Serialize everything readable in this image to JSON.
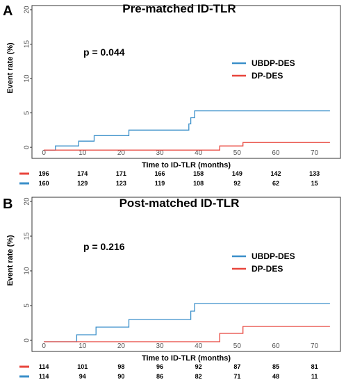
{
  "colors": {
    "ubdp": "#3a8fc9",
    "dp": "#e8453c",
    "axis": "#333333",
    "text": "#000000"
  },
  "chart_data": [
    {
      "panel_label": "A",
      "type": "line",
      "title": "Pre-matched ID-TLR",
      "p_value": "p = 0.044",
      "xlabel": "Time to ID-TLR (months)",
      "ylabel": "Event rate (%)",
      "xlim": [
        -2,
        76
      ],
      "ylim": [
        -1,
        20
      ],
      "x_ticks": [
        0,
        10,
        20,
        30,
        40,
        50,
        60,
        70
      ],
      "y_ticks": [
        0,
        5,
        10,
        15,
        20
      ],
      "legend_position": "right",
      "series": [
        {
          "name": "UBDP-DES",
          "color": "#3a8fc9",
          "steps": [
            [
              0,
              -0.4
            ],
            [
              3,
              -0.4
            ],
            [
              3,
              0.2
            ],
            [
              9,
              0.2
            ],
            [
              9,
              0.9
            ],
            [
              13,
              0.9
            ],
            [
              13,
              1.7
            ],
            [
              22,
              1.7
            ],
            [
              22,
              2.5
            ],
            [
              37.5,
              2.5
            ],
            [
              37.5,
              3.4
            ],
            [
              38,
              3.4
            ],
            [
              38,
              4.3
            ],
            [
              39,
              4.3
            ],
            [
              39,
              5.3
            ],
            [
              74,
              5.3
            ]
          ]
        },
        {
          "name": "DP-DES",
          "color": "#e8453c",
          "steps": [
            [
              0,
              -0.4
            ],
            [
              45.5,
              -0.4
            ],
            [
              45.5,
              0.2
            ],
            [
              51.5,
              0.2
            ],
            [
              51.5,
              0.7
            ],
            [
              74,
              0.7
            ]
          ]
        }
      ],
      "at_risk": [
        {
          "color": "#e8453c",
          "values": [
            "196",
            "174",
            "171",
            "166",
            "158",
            "149",
            "142",
            "133"
          ]
        },
        {
          "color": "#3a8fc9",
          "values": [
            "160",
            "129",
            "123",
            "119",
            "108",
            "92",
            "62",
            "15"
          ]
        }
      ]
    },
    {
      "panel_label": "B",
      "type": "line",
      "title": "Post-matched ID-TLR",
      "p_value": "p = 0.216",
      "xlabel": "Time to ID-TLR (months)",
      "ylabel": "Event rate (%)",
      "xlim": [
        -2,
        76
      ],
      "ylim": [
        -1,
        20
      ],
      "x_ticks": [
        0,
        10,
        20,
        30,
        40,
        50,
        60,
        70
      ],
      "y_ticks": [
        0,
        5,
        10,
        15,
        20
      ],
      "legend_position": "right",
      "series": [
        {
          "name": "UBDP-DES",
          "color": "#3a8fc9",
          "steps": [
            [
              0,
              -0.2
            ],
            [
              8.5,
              -0.2
            ],
            [
              8.5,
              0.8
            ],
            [
              13.5,
              0.8
            ],
            [
              13.5,
              1.9
            ],
            [
              22,
              1.9
            ],
            [
              22,
              3.0
            ],
            [
              38,
              3.0
            ],
            [
              38,
              4.2
            ],
            [
              39,
              4.2
            ],
            [
              39,
              5.3
            ],
            [
              74,
              5.3
            ]
          ]
        },
        {
          "name": "DP-DES",
          "color": "#e8453c",
          "steps": [
            [
              0,
              -0.2
            ],
            [
              45.5,
              -0.2
            ],
            [
              45.5,
              1.0
            ],
            [
              51.5,
              1.0
            ],
            [
              51.5,
              2.0
            ],
            [
              74,
              2.0
            ]
          ]
        }
      ],
      "at_risk": [
        {
          "color": "#e8453c",
          "values": [
            "114",
            "101",
            "98",
            "96",
            "92",
            "87",
            "85",
            "81"
          ]
        },
        {
          "color": "#3a8fc9",
          "values": [
            "114",
            "94",
            "90",
            "86",
            "82",
            "71",
            "48",
            "11"
          ]
        }
      ]
    }
  ]
}
